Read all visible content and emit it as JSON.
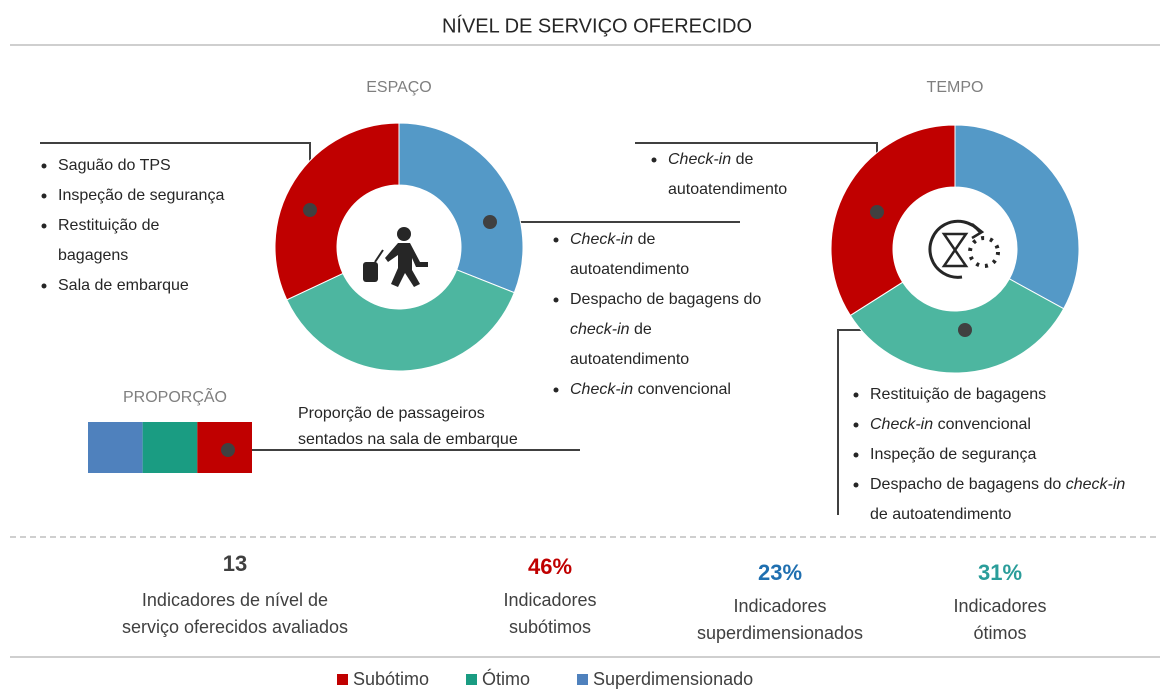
{
  "title": "NÍVEL DE SERVIÇO OFERECIDO",
  "donuts": [
    {
      "label": "ESPAÇO",
      "values": [
        31,
        37,
        32
      ],
      "colors": [
        "#5499c7",
        "#4db6a0",
        "#c00000"
      ]
    },
    {
      "label": "TEMPO",
      "values": [
        33,
        33,
        34
      ],
      "colors": [
        "#5499c7",
        "#4db6a0",
        "#c00000"
      ]
    }
  ],
  "callouts": [
    {
      "items": [
        [
          [
            {
              "text": "Saguão do TPS"
            }
          ]
        ],
        [
          [
            {
              "text": "Inspeção de segurança"
            }
          ]
        ],
        [
          [
            {
              "text": "Restituição de"
            }
          ],
          [
            {
              "text": "bagagens"
            }
          ]
        ],
        [
          [
            {
              "text": "Sala de embarque"
            }
          ]
        ]
      ]
    },
    {
      "items": [
        [
          [
            {
              "text": "Check-in",
              "italic": true
            },
            {
              "text": " de"
            }
          ],
          [
            {
              "text": "autoatendimento"
            }
          ]
        ],
        [
          [
            {
              "text": "Despacho de bagagens do"
            }
          ],
          [
            {
              "text": "check-in",
              "italic": true
            },
            {
              "text": " de"
            }
          ],
          [
            {
              "text": "autoatendimento"
            }
          ]
        ],
        [
          [
            {
              "text": "Check-in",
              "italic": true
            },
            {
              "text": " convencional"
            }
          ]
        ]
      ]
    },
    {
      "items": [
        [
          [
            {
              "text": "Check-in",
              "italic": true
            },
            {
              "text": " de"
            }
          ],
          [
            {
              "text": "autoatendimento"
            }
          ]
        ]
      ]
    },
    {
      "items": [
        [
          [
            {
              "text": "Restituição de bagagens"
            }
          ]
        ],
        [
          [
            {
              "text": "Check-in",
              "italic": true
            },
            {
              "text": " convencional"
            }
          ]
        ],
        [
          [
            {
              "text": "Inspeção de segurança"
            }
          ]
        ],
        [
          [
            {
              "text": "Despacho de bagagens do "
            },
            {
              "text": "check-in",
              "italic": true
            }
          ],
          [
            {
              "text": "de autoatendimento"
            }
          ]
        ]
      ]
    }
  ],
  "proportion": {
    "label": "PROPORÇÃO",
    "text": [
      "Proporção de passageiros",
      "sentados na sala de embarque"
    ],
    "values": [
      1,
      1,
      1
    ],
    "colors": [
      "#4f81bd",
      "#1a9c82",
      "#c00000"
    ]
  },
  "stats": [
    {
      "value": "13",
      "label": [
        "Indicadores de nível de",
        "serviço oferecidos avaliados"
      ],
      "color": "#404040"
    },
    {
      "value": "46%",
      "label": [
        "Indicadores",
        "subótimos"
      ],
      "color": "#c00000"
    },
    {
      "value": "23%",
      "label": [
        "Indicadores",
        "superdimensionados"
      ],
      "color": "#1f6fb0"
    },
    {
      "value": "31%",
      "label": [
        "Indicadores",
        "ótimos"
      ],
      "color": "#2a9d9a"
    }
  ],
  "legend": [
    {
      "name": "Subótimo",
      "color": "#c00000"
    },
    {
      "name": "Ótimo",
      "color": "#1a9c82"
    },
    {
      "name": "Superdimensionado",
      "color": "#4f81bd"
    }
  ]
}
